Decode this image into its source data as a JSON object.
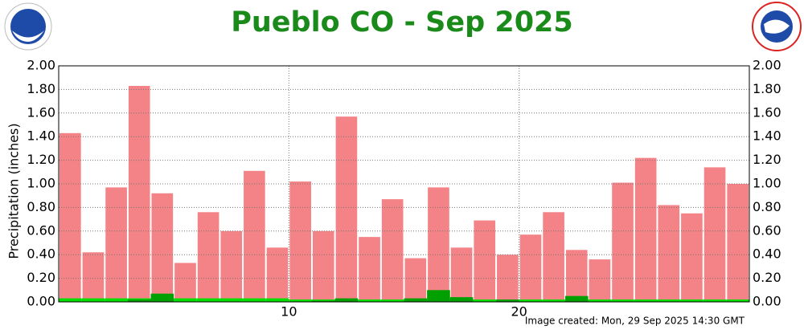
{
  "chart_data": {
    "type": "bar",
    "title": "Pueblo CO - Sep 2025",
    "ylabel": "Precipitation (inches)",
    "footer": "Image created: Mon, 29 Sep 2025 14:30 GMT",
    "x": [
      1,
      2,
      3,
      4,
      5,
      6,
      7,
      8,
      9,
      10,
      11,
      12,
      13,
      14,
      15,
      16,
      17,
      18,
      19,
      20,
      21,
      22,
      23,
      24,
      25,
      26,
      27,
      28,
      29,
      30
    ],
    "xlim": [
      0,
      30
    ],
    "xticks": [
      10,
      20
    ],
    "ylim": [
      0,
      2
    ],
    "yticks": [
      {
        "value": 0,
        "label": "0.00"
      },
      {
        "value": 0.2,
        "label": "0.20"
      },
      {
        "value": 0.4,
        "label": "0.40"
      },
      {
        "value": 0.6,
        "label": "0.60"
      },
      {
        "value": 0.8,
        "label": "0.80"
      },
      {
        "value": 1,
        "label": "1.00"
      },
      {
        "value": 1.2,
        "label": "1.20"
      },
      {
        "value": 1.4,
        "label": "1.40"
      },
      {
        "value": 1.6,
        "label": "1.60"
      },
      {
        "value": 1.8,
        "label": "1.80"
      },
      {
        "value": 2,
        "label": "2.00"
      }
    ],
    "grid": true,
    "series": [
      {
        "color": "#f38386",
        "values": [
          1.43,
          0.42,
          0.97,
          1.83,
          0.92,
          0.33,
          0.76,
          0.6,
          1.11,
          0.46,
          1.02,
          0.6,
          1.57,
          0.55,
          0.87,
          0.37,
          0.97,
          0.46,
          0.69,
          0.4,
          0.57,
          0.76,
          0.44,
          0.36,
          1.01,
          1.22,
          0.82,
          0.75,
          1.14,
          1.0
        ]
      },
      {
        "color": "#00e000",
        "values": [
          0.03,
          0.03,
          0.03,
          0.03,
          0.03,
          0.03,
          0.03,
          0.03,
          0.03,
          0.03,
          0.02,
          0.02,
          0.02,
          0.02,
          0.02,
          0.02,
          0.02,
          0.02,
          0.02,
          0.02,
          0.02,
          0.02,
          0.02,
          0.02,
          0.02,
          0.02,
          0.02,
          0.02,
          0.02,
          0.02
        ]
      },
      {
        "color": "#00a000",
        "values": [
          0,
          0,
          0,
          0.02,
          0.07,
          0,
          0,
          0,
          0,
          0,
          0,
          0.01,
          0.03,
          0,
          0,
          0.03,
          0.1,
          0.04,
          0,
          0.02,
          0,
          0,
          0.05,
          0,
          0,
          0,
          0,
          0,
          0,
          0
        ]
      }
    ]
  }
}
